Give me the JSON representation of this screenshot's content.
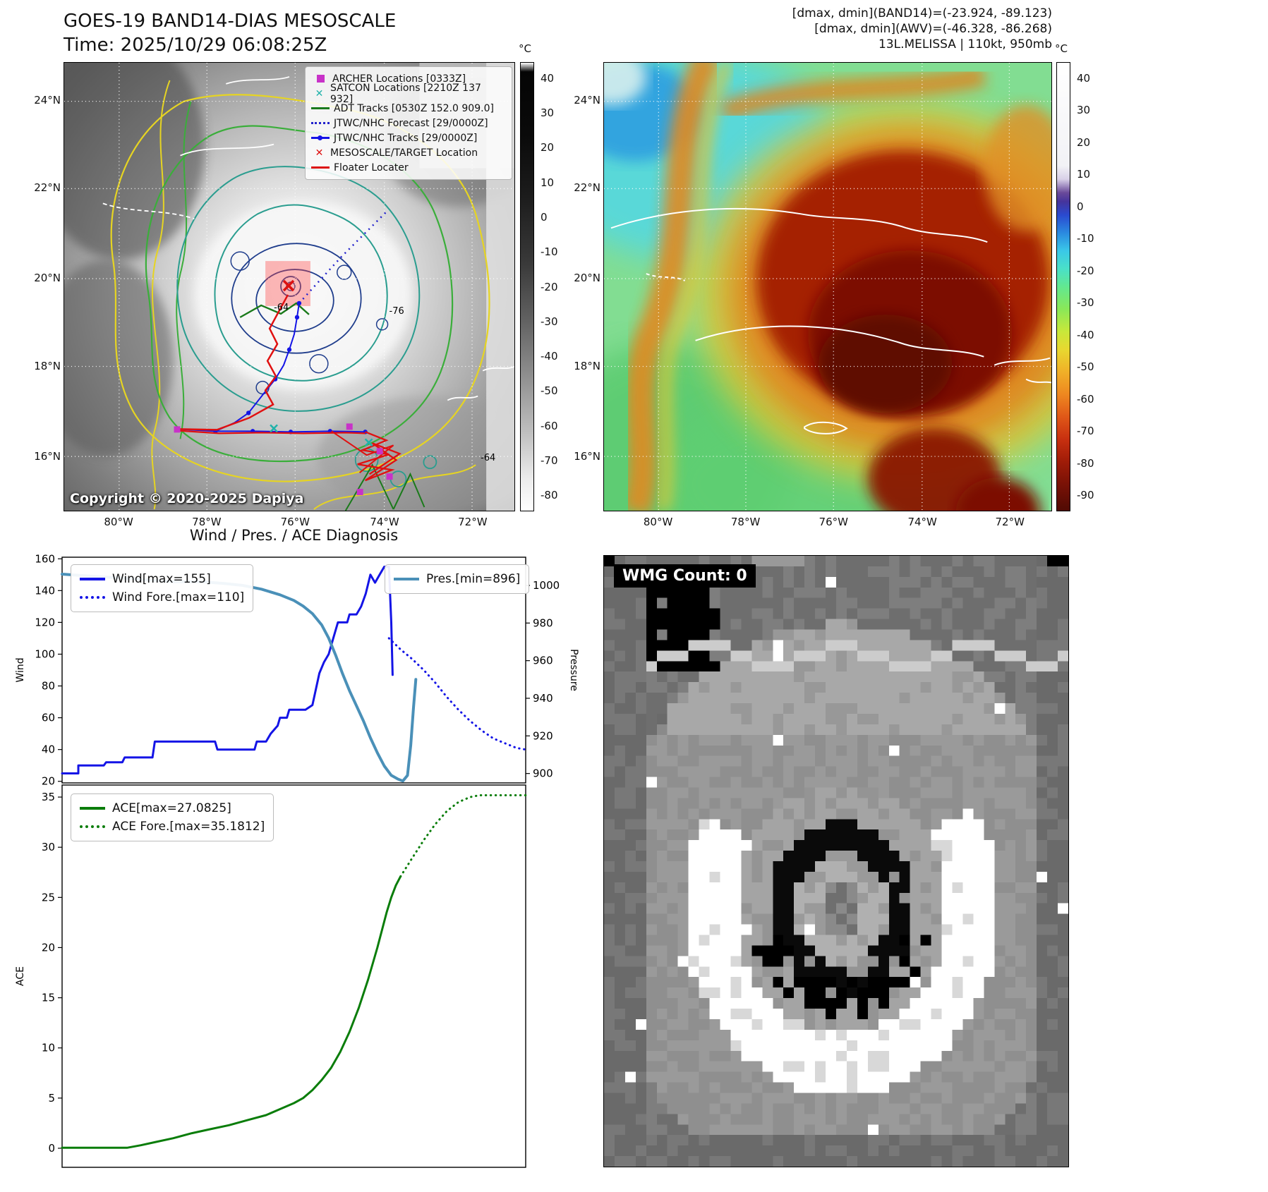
{
  "panel_tl": {
    "title": "GOES-19 BAND14-DIAS MESOSCALE",
    "subtitle": "Time: 2025/10/29 06:08:25Z",
    "legend": [
      {
        "label": "ARCHER Locations [0333Z]",
        "marker": "square",
        "color": "#c832c8"
      },
      {
        "label": "SATCON Locations [2210Z 137 932]",
        "marker": "x",
        "color": "#20b2aa"
      },
      {
        "label": "ADT Tracks [0530Z 152.0 909.0]",
        "marker": "line",
        "color": "#1a7a1a"
      },
      {
        "label": "JTWC/NHC Forecast [29/0000Z]",
        "marker": "dotted",
        "color": "#2222cc"
      },
      {
        "label": "JTWC/NHC Tracks [29/0000Z]",
        "marker": "line-dot",
        "color": "#1414e6"
      },
      {
        "label": "MESOSCALE/TARGET Location",
        "marker": "x",
        "color": "#dd1111"
      },
      {
        "label": "Floater Locater",
        "marker": "line",
        "color": "#dd1111"
      }
    ],
    "contour_labels": [
      "-64",
      "-76",
      "-64"
    ],
    "copyright": "Copyright © 2020-2025 Dapiya",
    "lat_ticks": [
      "24°N",
      "22°N",
      "20°N",
      "18°N",
      "16°N"
    ],
    "lon_ticks": [
      "80°W",
      "78°W",
      "76°W",
      "74°W",
      "72°W"
    ],
    "colorbar_unit": "°C",
    "colorbar_ticks": [
      "40",
      "30",
      "20",
      "10",
      "0",
      "-10",
      "-20",
      "-30",
      "-40",
      "-50",
      "-60",
      "-70",
      "-80"
    ]
  },
  "panel_tr": {
    "header_lines": [
      "[dmax, dmin](BAND14)=(-23.924, -89.123)",
      "[dmax, dmin](AWV)=(-46.328, -86.268)",
      "13L.MELISSA | 110kt, 950mb"
    ],
    "lat_ticks": [
      "24°N",
      "22°N",
      "20°N",
      "18°N",
      "16°N"
    ],
    "lon_ticks": [
      "80°W",
      "78°W",
      "76°W",
      "74°W",
      "72°W"
    ],
    "colorbar_unit": "°C",
    "colorbar_ticks": [
      "40",
      "30",
      "20",
      "10",
      "0",
      "-10",
      "-20",
      "-30",
      "-40",
      "-50",
      "-60",
      "-70",
      "-80",
      "-90"
    ]
  },
  "charts": {
    "title": "Wind / Pres. / ACE Diagnosis"
  },
  "chart_data": [
    {
      "type": "line",
      "title": "Wind / Pres. / ACE Diagnosis",
      "xlim": [
        0,
        100
      ],
      "grid": false,
      "left_axis": {
        "label": "Wind",
        "lim": [
          19,
          161
        ],
        "ticks": [
          20,
          40,
          60,
          80,
          100,
          120,
          140,
          160
        ]
      },
      "right_axis": {
        "label": "Pressure",
        "lim": [
          895,
          1015
        ],
        "ticks": [
          900,
          920,
          940,
          960,
          980,
          1000
        ]
      },
      "legend_left": [
        {
          "name": "Wind[max=155]",
          "style": "solid",
          "color": "#1414e6"
        },
        {
          "name": "Wind Fore.[max=110]",
          "style": "dotted",
          "color": "#1414e6"
        }
      ],
      "legend_right": [
        {
          "name": "Pres.[min=896]",
          "style": "solid",
          "color": "#4a90b8"
        }
      ],
      "series": [
        {
          "name": "Wind[max=155]",
          "axis": "left",
          "style": "solid",
          "color": "#1414e6",
          "width": 3,
          "x": [
            0,
            3.5,
            3.5,
            9,
            9.5,
            13,
            13.5,
            19.5,
            20,
            26.5,
            33,
            33.5,
            41.5,
            42,
            44,
            45,
            46.5,
            47,
            48.5,
            49,
            52.5,
            54,
            55.5,
            56.5,
            57.5,
            58.5,
            59.5,
            61.5,
            62,
            63.5,
            64.5,
            65.5,
            66.5,
            67.5,
            68.5,
            69.5,
            70.5,
            71,
            71.3
          ],
          "y": [
            25,
            25,
            30,
            30,
            32,
            32,
            35,
            35,
            45,
            45,
            45,
            40,
            40,
            45,
            45,
            50,
            55,
            60,
            60,
            65,
            65,
            68,
            88,
            95,
            100,
            110,
            120,
            120,
            125,
            125,
            130,
            138,
            150,
            145,
            150,
            155,
            155,
            120,
            87
          ]
        },
        {
          "name": "Wind Fore.[max=110]",
          "axis": "left",
          "style": "dotted",
          "color": "#1414e6",
          "width": 3,
          "x": [
            70.5,
            73,
            75.5,
            78,
            80.5,
            83,
            85.5,
            88,
            90.5,
            93,
            95.5,
            98,
            100
          ],
          "y": [
            110,
            103,
            97,
            90,
            82,
            73,
            65,
            58,
            52,
            47,
            44,
            41,
            40
          ]
        },
        {
          "name": "Pres.[min=896]",
          "axis": "right",
          "style": "solid",
          "color": "#4a90b8",
          "width": 4,
          "x": [
            0,
            6,
            12,
            18,
            24,
            30,
            35,
            39,
            43,
            47,
            50,
            52,
            54,
            56,
            57.5,
            59,
            60.5,
            62,
            63.5,
            65,
            66.5,
            68,
            69.5,
            71,
            72.5,
            73.5,
            74.5,
            75.2,
            75.8,
            76.3
          ],
          "y": [
            1006,
            1005,
            1004,
            1003,
            1002,
            1002,
            1001,
            1000,
            998,
            995,
            992,
            989,
            985,
            979,
            972,
            963,
            953,
            944,
            936,
            928,
            919,
            911,
            904,
            899,
            897,
            896,
            899,
            915,
            935,
            950
          ]
        }
      ]
    },
    {
      "type": "line",
      "xlim": [
        0,
        100
      ],
      "grid": false,
      "left_axis": {
        "label": "ACE",
        "lim": [
          -1.9,
          36.2
        ],
        "ticks": [
          0,
          5,
          10,
          15,
          20,
          25,
          30,
          35
        ]
      },
      "legend_left": [
        {
          "name": "ACE[max=27.0825]",
          "style": "solid",
          "color": "#0a7d0a"
        },
        {
          "name": "ACE Fore.[max=35.1812]",
          "style": "dotted",
          "color": "#0a7d0a"
        }
      ],
      "series": [
        {
          "name": "ACE[max=27.0825]",
          "axis": "left",
          "style": "solid",
          "color": "#0a7d0a",
          "width": 3,
          "x": [
            0,
            14,
            17,
            20,
            24,
            28,
            32,
            36,
            40,
            44,
            47,
            50,
            52,
            54,
            56,
            58,
            60,
            62,
            64,
            66,
            68,
            70,
            71,
            72,
            73
          ],
          "y": [
            0.05,
            0.05,
            0.3,
            0.6,
            1.0,
            1.5,
            1.9,
            2.3,
            2.8,
            3.3,
            3.9,
            4.5,
            5.0,
            5.8,
            6.8,
            8.0,
            9.6,
            11.6,
            14.0,
            16.8,
            20.0,
            23.5,
            25.0,
            26.2,
            27.08
          ]
        },
        {
          "name": "ACE Fore.[max=35.1812]",
          "axis": "left",
          "style": "dotted",
          "color": "#0a7d0a",
          "width": 3,
          "x": [
            73,
            75.5,
            78,
            80.5,
            83,
            85.5,
            88,
            90,
            93,
            96,
            100
          ],
          "y": [
            27.08,
            28.9,
            30.7,
            32.3,
            33.6,
            34.5,
            35.0,
            35.18,
            35.18,
            35.18,
            35.18
          ]
        }
      ]
    }
  ],
  "panel_br": {
    "wmg_label": "WMG Count: 0"
  }
}
